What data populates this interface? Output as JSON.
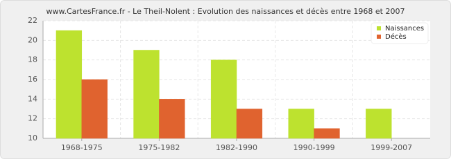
{
  "chart_data": {
    "type": "bar",
    "title": "www.CartesFrance.fr - Le Theil-Nolent : Evolution des naissances et décès entre 1968 et 2007",
    "categories": [
      "1968-1975",
      "1975-1982",
      "1982-1990",
      "1990-1999",
      "1999-2007"
    ],
    "series": [
      {
        "name": "Naissances",
        "color": "#bde22f",
        "values": [
          21,
          19,
          18,
          13,
          13
        ]
      },
      {
        "name": "Décès",
        "color": "#e0632f",
        "values": [
          16,
          14,
          13,
          11,
          10
        ]
      }
    ],
    "ylim": [
      10,
      22
    ],
    "yticks": [
      10,
      12,
      14,
      16,
      18,
      20,
      22
    ],
    "grid": true,
    "legend": "top-right"
  }
}
